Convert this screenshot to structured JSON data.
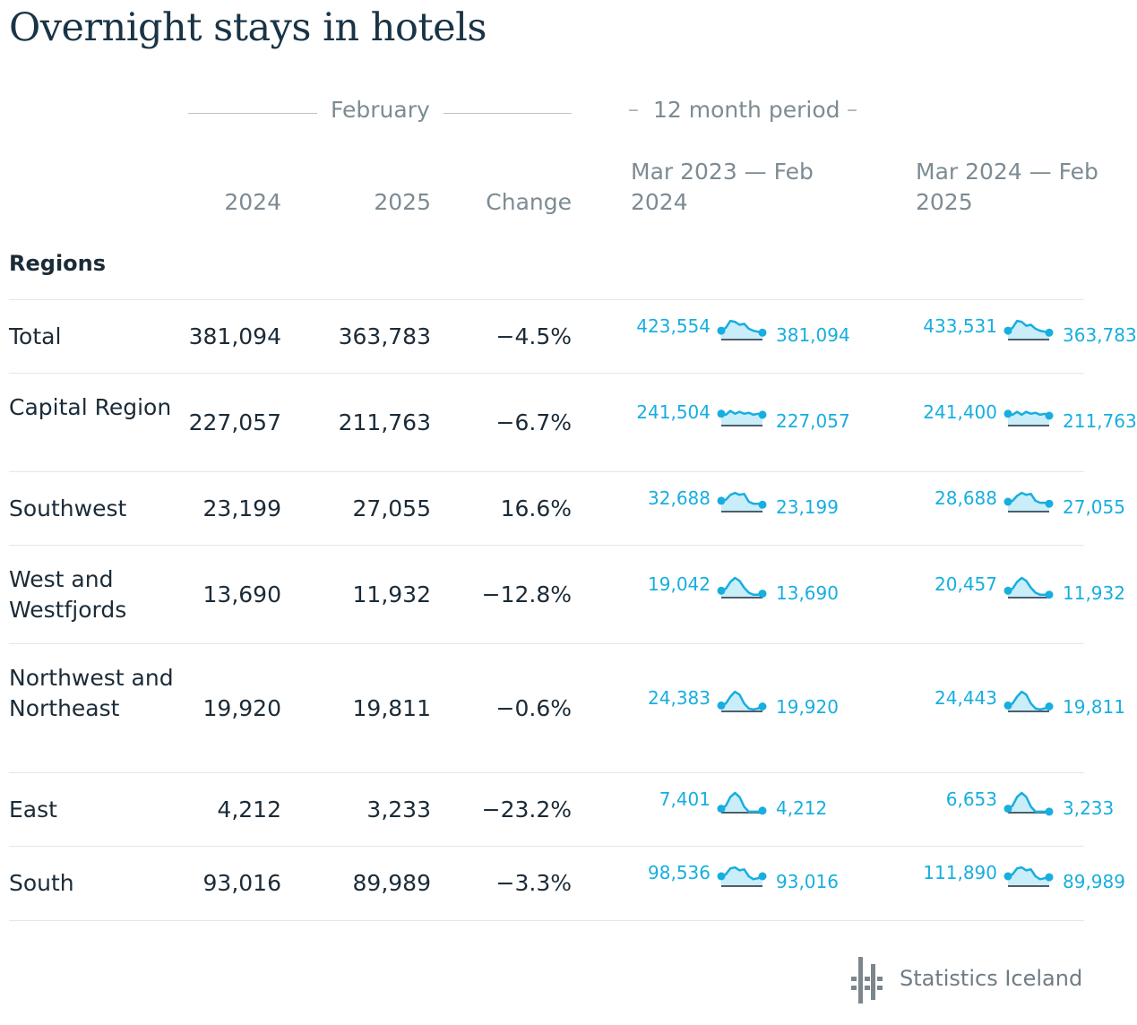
{
  "title": "Overnight stays in hotels",
  "header": {
    "group_february": "February",
    "group_period": "12 month period",
    "col_2024": "2024",
    "col_2025": "2025",
    "col_change": "Change",
    "col_period1": "Mar 2023 — Feb 2024",
    "col_period2": "Mar 2024 — Feb 2025"
  },
  "section_label": "Regions",
  "rows": [
    {
      "name": "Total",
      "v2024": "381,094",
      "v2025": "363,783",
      "change": "−4.5%",
      "p1_start": "423,554",
      "p1_end": "381,094",
      "p2_start": "433,531",
      "p2_end": "363,783",
      "p1_trend": [
        0.45,
        0.6,
        0.95,
        0.9,
        0.75,
        0.8,
        0.55,
        0.45,
        0.4,
        0.35
      ],
      "p2_trend": [
        0.45,
        0.6,
        0.95,
        0.9,
        0.7,
        0.75,
        0.55,
        0.45,
        0.4,
        0.35
      ]
    },
    {
      "name": "Capital Region",
      "v2024": "227,057",
      "v2025": "211,763",
      "change": "−6.7%",
      "p1_start": "241,504",
      "p1_end": "227,057",
      "p2_start": "241,400",
      "p2_end": "211,763",
      "p1_trend": [
        0.6,
        0.55,
        0.75,
        0.6,
        0.7,
        0.6,
        0.65,
        0.55,
        0.6,
        0.55
      ],
      "p2_trend": [
        0.6,
        0.55,
        0.7,
        0.55,
        0.7,
        0.6,
        0.65,
        0.55,
        0.6,
        0.5
      ]
    },
    {
      "name": "Southwest",
      "v2024": "23,199",
      "v2025": "27,055",
      "change": "16.6%",
      "p1_start": "32,688",
      "p1_end": "23,199",
      "p2_start": "28,688",
      "p2_end": "27,055",
      "p1_trend": [
        0.55,
        0.6,
        0.85,
        0.95,
        0.85,
        0.9,
        0.5,
        0.4,
        0.4,
        0.35
      ],
      "p2_trend": [
        0.5,
        0.55,
        0.8,
        0.95,
        0.85,
        0.9,
        0.55,
        0.45,
        0.45,
        0.4
      ]
    },
    {
      "name": "West and Westfjords",
      "v2024": "13,690",
      "v2025": "11,932",
      "change": "−12.8%",
      "p1_start": "19,042",
      "p1_end": "13,690",
      "p2_start": "20,457",
      "p2_end": "11,932",
      "p1_trend": [
        0.35,
        0.45,
        0.8,
        1.0,
        0.85,
        0.5,
        0.25,
        0.15,
        0.15,
        0.2
      ],
      "p2_trend": [
        0.35,
        0.45,
        0.8,
        1.0,
        0.85,
        0.5,
        0.25,
        0.15,
        0.15,
        0.15
      ]
    },
    {
      "name": "Northwest and Northeast",
      "v2024": "19,920",
      "v2025": "19,811",
      "change": "−0.6%",
      "p1_start": "24,383",
      "p1_end": "19,920",
      "p2_start": "24,443",
      "p2_end": "19,811",
      "p1_trend": [
        0.3,
        0.4,
        0.75,
        1.0,
        0.85,
        0.4,
        0.15,
        0.1,
        0.15,
        0.25
      ],
      "p2_trend": [
        0.3,
        0.4,
        0.75,
        1.0,
        0.85,
        0.4,
        0.15,
        0.1,
        0.15,
        0.25
      ]
    },
    {
      "name": "East",
      "v2024": "4,212",
      "v2025": "3,233",
      "change": "−23.2%",
      "p1_start": "7,401",
      "p1_end": "4,212",
      "p2_start": "6,653",
      "p2_end": "3,233",
      "p1_trend": [
        0.2,
        0.35,
        0.8,
        1.0,
        0.8,
        0.3,
        0.05,
        0.05,
        0.05,
        0.1
      ],
      "p2_trend": [
        0.2,
        0.35,
        0.8,
        1.0,
        0.8,
        0.3,
        0.05,
        0.05,
        0.05,
        0.05
      ]
    },
    {
      "name": "South",
      "v2024": "93,016",
      "v2025": "89,989",
      "change": "−3.3%",
      "p1_start": "98,536",
      "p1_end": "93,016",
      "p2_start": "111,890",
      "p2_end": "89,989",
      "p1_trend": [
        0.5,
        0.6,
        0.9,
        0.95,
        0.8,
        0.85,
        0.5,
        0.35,
        0.4,
        0.5
      ],
      "p2_trend": [
        0.5,
        0.6,
        0.9,
        0.95,
        0.8,
        0.85,
        0.5,
        0.35,
        0.4,
        0.45
      ]
    }
  ],
  "brand": {
    "name": "Statistics Iceland",
    "logo_icon": "statistics-iceland-logo-icon",
    "accent_color": "#17aee0",
    "spark_fill": "#c9eefa",
    "logo_color": "#7b868d"
  }
}
